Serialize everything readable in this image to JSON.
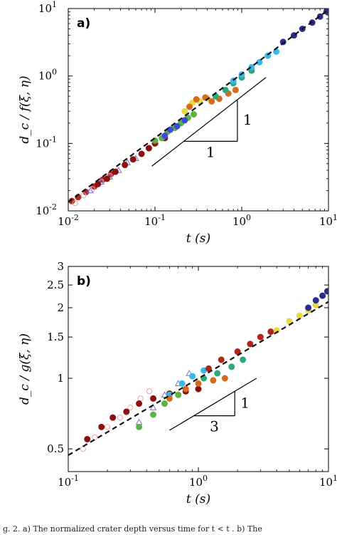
{
  "caption": "g. 2. a) The normalized crater depth versus time for t < t . b) The",
  "chart_data": [
    {
      "type": "scatter",
      "panel_label": "a)",
      "xlabel": "t (s)",
      "ylabel": "d_c / f(ξ, η)",
      "x_scale": "log",
      "y_scale": "log",
      "xlim": [
        0.01,
        10
      ],
      "ylim": [
        0.01,
        10
      ],
      "x_ticks": [
        0.01,
        0.1,
        1,
        10
      ],
      "x_tick_labels": [
        [
          "10",
          "-2"
        ],
        [
          "10",
          "-1"
        ],
        [
          "10",
          "0"
        ],
        [
          "10",
          "1"
        ]
      ],
      "y_ticks": [
        0.01,
        0.1,
        1,
        10
      ],
      "y_tick_labels": [
        [
          "10",
          "-2"
        ],
        [
          "10",
          "-1"
        ],
        [
          "10",
          "0"
        ],
        [
          "10",
          "1"
        ]
      ],
      "grid": false,
      "fit_line": {
        "style": "dashed",
        "color": "#111111",
        "x": [
          0.01,
          10
        ],
        "y": [
          0.0135,
          9.6
        ]
      },
      "slope_triangle": {
        "rise_label": "1",
        "run_label": "1",
        "x": [
          0.092,
          1.9
        ],
        "y": [
          0.046,
          0.95
        ]
      },
      "series": [
        {
          "color": "#b0251a",
          "marker": "filled",
          "x": [
            0.011,
            0.013,
            0.016,
            0.02,
            0.025,
            0.031
          ],
          "y": [
            0.014,
            0.016,
            0.019,
            0.023,
            0.029,
            0.035
          ]
        },
        {
          "color": "#e9a6a6",
          "marker": "open",
          "x": [
            0.012,
            0.015,
            0.019,
            0.024,
            0.03
          ],
          "y": [
            0.013,
            0.017,
            0.021,
            0.027,
            0.033
          ]
        },
        {
          "color": "#7a6fd0",
          "marker": "open-triangle",
          "x": [
            0.018,
            0.024,
            0.03,
            0.038,
            0.048,
            0.06
          ],
          "y": [
            0.02,
            0.027,
            0.032,
            0.04,
            0.052,
            0.06
          ]
        },
        {
          "color": "#8b0f0f",
          "marker": "filled",
          "x": [
            0.022,
            0.028,
            0.035,
            0.045,
            0.056,
            0.07,
            0.085,
            0.1,
            0.13
          ],
          "y": [
            0.025,
            0.03,
            0.038,
            0.048,
            0.058,
            0.07,
            0.085,
            0.1,
            0.12
          ]
        },
        {
          "color": "#5fb04a",
          "marker": "filled",
          "x": [
            0.1,
            0.12,
            0.14,
            0.17,
            0.2,
            0.24,
            0.28
          ],
          "y": [
            0.11,
            0.12,
            0.15,
            0.17,
            0.2,
            0.24,
            0.27
          ]
        },
        {
          "color": "#3d4bd6",
          "marker": "filled",
          "x": [
            0.13,
            0.15,
            0.18,
            0.22
          ],
          "y": [
            0.13,
            0.16,
            0.18,
            0.22
          ]
        },
        {
          "color": "#e8d84a",
          "marker": "filled",
          "x": [
            0.22,
            0.27,
            0.33,
            0.4,
            0.5
          ],
          "y": [
            0.3,
            0.4,
            0.42,
            0.47,
            0.5
          ]
        },
        {
          "color": "#d66a1f",
          "marker": "filled",
          "x": [
            0.25,
            0.3,
            0.38,
            0.45,
            0.55,
            0.7,
            0.85
          ],
          "y": [
            0.35,
            0.45,
            0.48,
            0.42,
            0.46,
            0.55,
            0.62
          ]
        },
        {
          "color": "#2fa87e",
          "marker": "filled",
          "x": [
            0.5,
            0.65,
            0.8,
            1.0,
            1.3
          ],
          "y": [
            0.5,
            0.62,
            0.78,
            0.95,
            1.2
          ]
        },
        {
          "color": "#3bb7e6",
          "marker": "filled",
          "x": [
            0.8,
            1.0,
            1.3,
            1.6,
            2.0,
            2.5
          ],
          "y": [
            0.85,
            1.05,
            1.35,
            1.6,
            2.0,
            2.3
          ]
        },
        {
          "color": "#2c2c8c",
          "marker": "filled",
          "x": [
            3.0,
            4.0,
            5.0,
            6.5,
            8.0,
            9.5
          ],
          "y": [
            3.2,
            4.0,
            5.0,
            6.2,
            7.6,
            9.0
          ]
        }
      ]
    },
    {
      "type": "scatter",
      "panel_label": "b)",
      "xlabel": "t (s)",
      "ylabel": "d_c / g(ξ, η)",
      "x_scale": "log",
      "y_scale": "log",
      "xlim": [
        0.1,
        10
      ],
      "ylim": [
        0.4,
        3
      ],
      "x_ticks": [
        0.1,
        1,
        10
      ],
      "x_tick_labels": [
        [
          "10",
          "-1"
        ],
        [
          "10",
          "0"
        ],
        [
          "10",
          "1"
        ]
      ],
      "y_ticks": [
        0.5,
        1,
        1.5,
        2,
        2.5,
        3
      ],
      "y_tick_labels": [
        [
          "0.5",
          ""
        ],
        [
          "1",
          ""
        ],
        [
          "1.5",
          ""
        ],
        [
          "2",
          ""
        ],
        [
          "2.5",
          ""
        ],
        [
          "3",
          ""
        ]
      ],
      "grid": false,
      "fit_line": {
        "style": "dashed",
        "color": "#111111",
        "x": [
          0.1,
          10
        ],
        "y": [
          0.47,
          2.12
        ]
      },
      "slope_triangle": {
        "rise_label": "1",
        "run_label": "3",
        "x": [
          0.6,
          2.8
        ],
        "y": [
          0.6,
          1.0
        ]
      },
      "series": [
        {
          "color": "#e9a6a6",
          "marker": "open",
          "x": [
            0.13,
            0.16,
            0.2,
            0.25,
            0.3,
            0.36,
            0.42
          ],
          "y": [
            0.5,
            0.56,
            0.62,
            0.68,
            0.75,
            0.82,
            0.88
          ]
        },
        {
          "color": "#8b0f0f",
          "marker": "filled",
          "x": [
            0.14,
            0.18,
            0.22,
            0.28,
            0.35,
            0.45,
            0.6,
            0.8,
            1.0
          ],
          "y": [
            0.55,
            0.62,
            0.68,
            0.72,
            0.78,
            0.82,
            0.86,
            0.88,
            0.9
          ]
        },
        {
          "color": "#7a6fd0",
          "marker": "open-triangle",
          "x": [
            0.35,
            0.45,
            0.55,
            0.7,
            0.85
          ],
          "y": [
            0.65,
            0.75,
            0.85,
            0.95,
            1.05
          ]
        },
        {
          "color": "#5fb04a",
          "marker": "filled",
          "x": [
            0.35,
            0.45,
            0.55,
            0.7
          ],
          "y": [
            0.62,
            0.7,
            0.78,
            0.85
          ]
        },
        {
          "color": "#3bb7e6",
          "marker": "filled",
          "x": [
            0.6,
            0.75,
            0.9,
            1.1
          ],
          "y": [
            0.85,
            0.95,
            1.02,
            1.08
          ]
        },
        {
          "color": "#d66a1f",
          "marker": "filled",
          "x": [
            0.6,
            0.8,
            1.0,
            1.3,
            1.6
          ],
          "y": [
            0.82,
            0.9,
            0.95,
            0.98,
            1.0
          ]
        },
        {
          "color": "#b0251a",
          "marker": "filled",
          "x": [
            1.2,
            1.5,
            2.0,
            2.5,
            3.0,
            3.6
          ],
          "y": [
            1.1,
            1.2,
            1.3,
            1.4,
            1.5,
            1.58
          ]
        },
        {
          "color": "#2fa87e",
          "marker": "filled",
          "x": [
            1.1,
            1.4,
            1.8,
            2.2
          ],
          "y": [
            1.0,
            1.05,
            1.12,
            1.2
          ]
        },
        {
          "color": "#e8d84a",
          "marker": "filled",
          "x": [
            4.0,
            5.0,
            6.0,
            7.0,
            8.0
          ],
          "y": [
            1.6,
            1.75,
            1.85,
            1.95,
            2.05
          ]
        },
        {
          "color": "#2c2c8c",
          "marker": "filled",
          "x": [
            7.0,
            8.0,
            9.0,
            9.8
          ],
          "y": [
            2.0,
            2.15,
            2.25,
            2.35
          ]
        }
      ]
    }
  ]
}
